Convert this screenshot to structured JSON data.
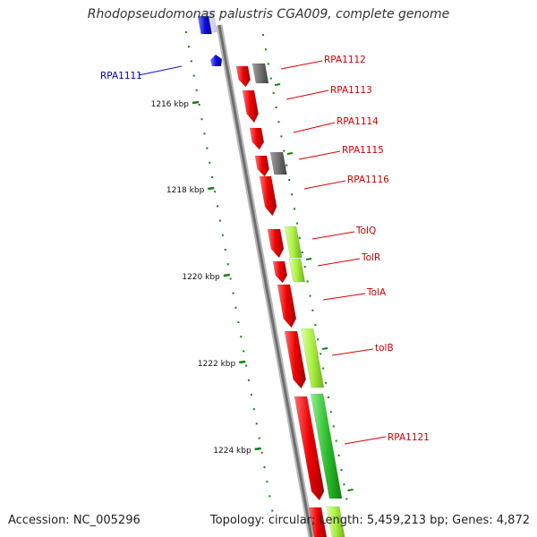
{
  "title": "Rhodopseudomonas palustris CGA009, complete genome",
  "footer": {
    "accession_text": "Accession: NC_005296",
    "stats_text": "Topology: circular; Length: 5,459,213 bp; Genes: 4,872"
  },
  "ruler": {
    "labels": [
      "1216 kbp",
      "1218 kbp",
      "1220 kbp",
      "1222 kbp",
      "1224 kbp"
    ]
  },
  "colors": {
    "forward_gene": "#e00000",
    "reverse_gene": "#1010e0",
    "hypothetical_gene": "#707070",
    "light_green_gene": "#a8f040",
    "green_gene": "#30c030",
    "ruler_tick": "#108010",
    "backbone": "#8a8a8a",
    "label_red": "#cc0000",
    "label_blue": "#000099"
  },
  "genes": [
    {
      "label": "RPA1111",
      "strand": "reverse"
    },
    {
      "label": "RPA1112",
      "strand": "forward"
    },
    {
      "label": "RPA1113",
      "strand": "forward"
    },
    {
      "label": "RPA1114",
      "strand": "forward"
    },
    {
      "label": "RPA1115",
      "strand": "forward"
    },
    {
      "label": "RPA1116",
      "strand": "forward"
    },
    {
      "label": "TolQ",
      "strand": "forward"
    },
    {
      "label": "TolR",
      "strand": "forward"
    },
    {
      "label": "TolA",
      "strand": "forward"
    },
    {
      "label": "tolB",
      "strand": "forward"
    },
    {
      "label": "RPA1121",
      "strand": "forward"
    }
  ]
}
